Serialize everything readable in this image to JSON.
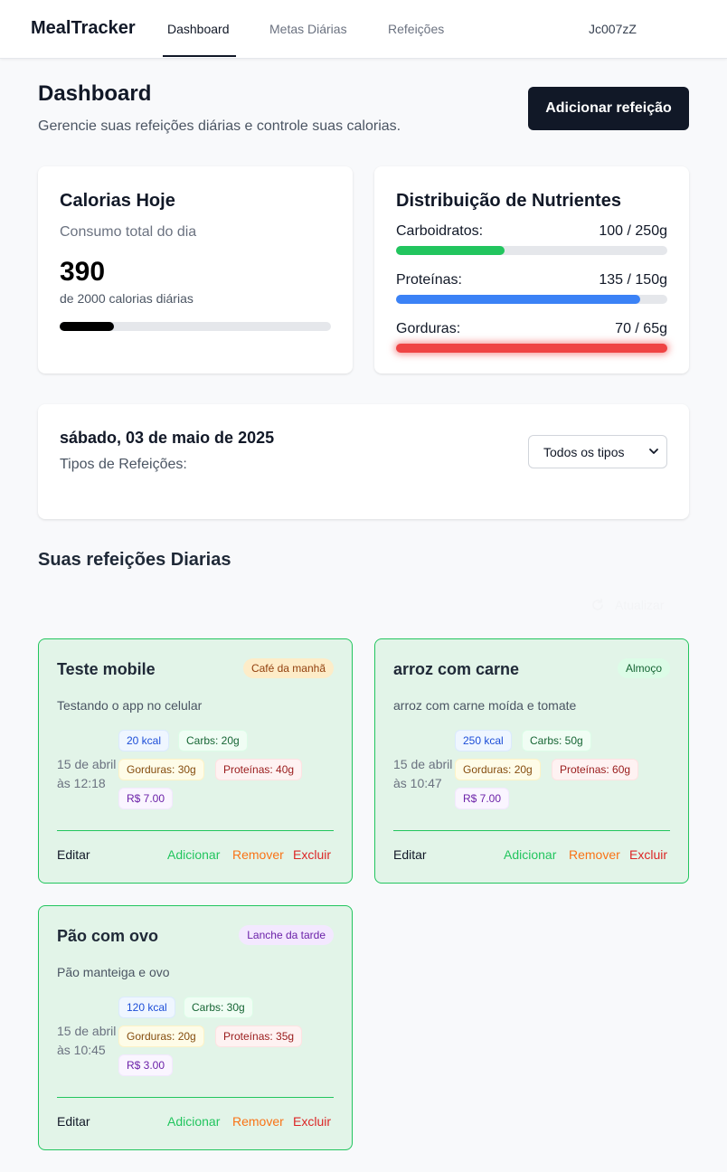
{
  "nav": {
    "brand": "MealTracker",
    "tabs": [
      "Dashboard",
      "Metas Diárias",
      "Refeições"
    ],
    "user": "Jc007zZ"
  },
  "header": {
    "title": "Dashboard",
    "subtitle": "Gerencie suas refeições diárias e controle suas calorias.",
    "add_button": "Adicionar refeição"
  },
  "calories": {
    "title": "Calorias Hoje",
    "subtitle": "Consumo total do dia",
    "value": "390",
    "note": "de 2000 calorias diárias",
    "progress_percent": 20
  },
  "nutrients": {
    "title": "Distribuição de Nutrientes",
    "items": [
      {
        "label": "Carboidratos:",
        "value": "100 / 250g",
        "percent": 40,
        "color": "#22c55e"
      },
      {
        "label": "Proteínas:",
        "value": "135 / 150g",
        "percent": 90,
        "color": "#3b82f6"
      },
      {
        "label": "Gorduras:",
        "value": "70 / 65g",
        "percent": 100,
        "color": "#ef4444"
      }
    ]
  },
  "filter": {
    "date": "sábado, 03 de maio de 2025",
    "types_label": "Tipos de Refeições:",
    "select_value": "Todos os tipos"
  },
  "meals_section": {
    "title": "Suas refeições Diarias",
    "refresh_label": "Atualizar"
  },
  "meals": [
    {
      "title": "Teste mobile",
      "badge": "Café da manhã",
      "description": "Testando o app no celular",
      "date": "15 de abril às 12:18",
      "kcal": "20 kcal",
      "carbs": "Carbs: 20g",
      "fat": "Gorduras: 30g",
      "protein": "Proteínas: 40g",
      "price": "R$ 7.00"
    },
    {
      "title": "arroz com carne",
      "badge": "Almoço",
      "description": "arroz com carne moída e tomate",
      "date": "15 de abril às 10:47",
      "kcal": "250 kcal",
      "carbs": "Carbs: 50g",
      "fat": "Gorduras: 20g",
      "protein": "Proteínas: 60g",
      "price": "R$ 7.00"
    },
    {
      "title": "Pão com ovo",
      "badge": "Lanche da tarde",
      "description": "Pão manteiga e ovo",
      "date": "15 de abril às 10:45",
      "kcal": "120 kcal",
      "carbs": "Carbs: 30g",
      "fat": "Gorduras: 20g",
      "protein": "Proteínas: 35g",
      "price": "R$ 3.00"
    }
  ],
  "meal_actions": {
    "edit": "Editar",
    "add": "Adicionar",
    "remove": "Remover",
    "delete": "Excluir"
  },
  "colors": {
    "badge_breakfast_bg": "#fdecc8",
    "badge_breakfast_fg": "#92400e",
    "badge_lunch_bg": "#dcfce7",
    "badge_lunch_fg": "#166534",
    "badge_snack_bg": "#f3e8ff",
    "badge_snack_fg": "#6b21a8"
  }
}
